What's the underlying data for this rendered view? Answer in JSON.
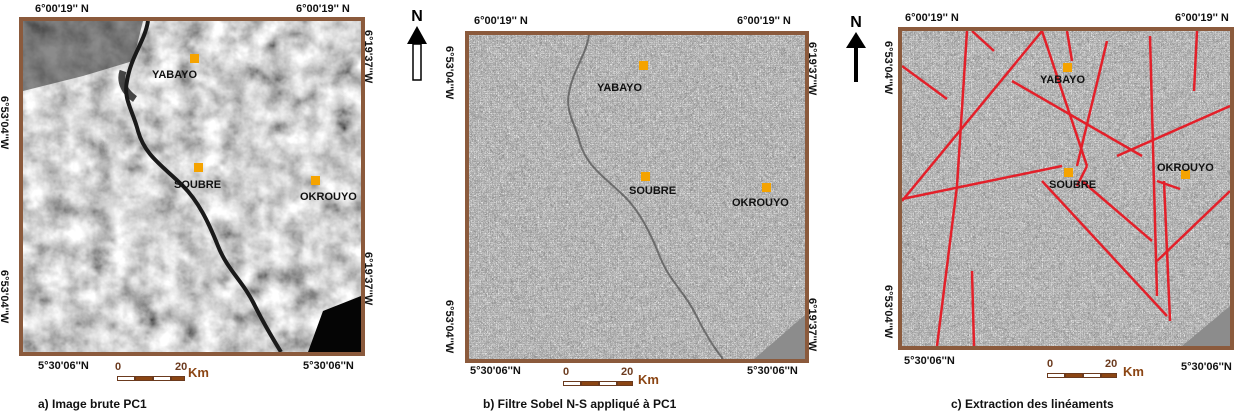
{
  "coords": {
    "top": "6°00'19'' N",
    "bottom": "5°30'06''N",
    "left_vertical": "6°53'04''W",
    "right_vertical": "6°19'37''W"
  },
  "north_label": "N",
  "scale": {
    "zero": "0",
    "twenty": "20",
    "unit": "Km"
  },
  "towns": {
    "yabayo": "YABAYO",
    "soubre": "SOUBRE",
    "okrouyo": "OKROUYO"
  },
  "panels": [
    {
      "caption": "a) Image brute PC1"
    },
    {
      "caption": "b) Filtre Sobel N-S appliqué à PC1"
    },
    {
      "caption": "c) Extraction des linéaments"
    }
  ],
  "colors": {
    "frame": "#8b5a3c",
    "town_marker": "#f5a300",
    "lineament": "#e3202a"
  }
}
